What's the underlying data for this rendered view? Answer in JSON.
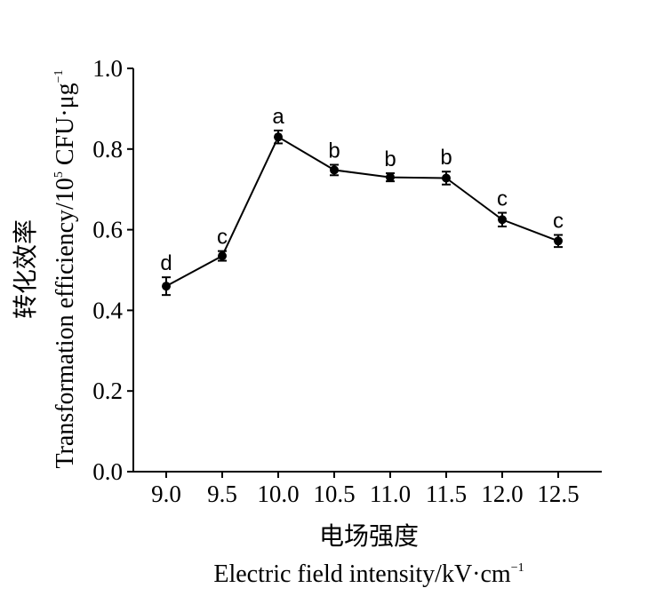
{
  "chart_data": {
    "type": "line",
    "title": "",
    "xlabel_cn": "电场强度",
    "xlabel_en": "Electric field intensity/kV·cm",
    "xlabel_en_sup": "−1",
    "ylabel_cn": "转化效率",
    "ylabel_en_a": "Transformation efficiency/10",
    "ylabel_en_sup1": "5",
    "ylabel_en_b": " CFU·μg",
    "ylabel_en_sup2": "−1",
    "categories": [
      "9.0",
      "9.5",
      "10.0",
      "10.5",
      "11.0",
      "11.5",
      "12.0",
      "12.5"
    ],
    "values": [
      0.46,
      0.535,
      0.83,
      0.748,
      0.73,
      0.728,
      0.625,
      0.572
    ],
    "errors": [
      0.022,
      0.012,
      0.016,
      0.013,
      0.01,
      0.016,
      0.017,
      0.015
    ],
    "letters": [
      "d",
      "c",
      "a",
      "b",
      "b",
      "b",
      "c",
      "c"
    ],
    "ylim": [
      0,
      1.0
    ],
    "yticks": [
      "0.0",
      "0.2",
      "0.4",
      "0.6",
      "0.8",
      "1.0"
    ],
    "grid": false,
    "color": "#000000"
  }
}
